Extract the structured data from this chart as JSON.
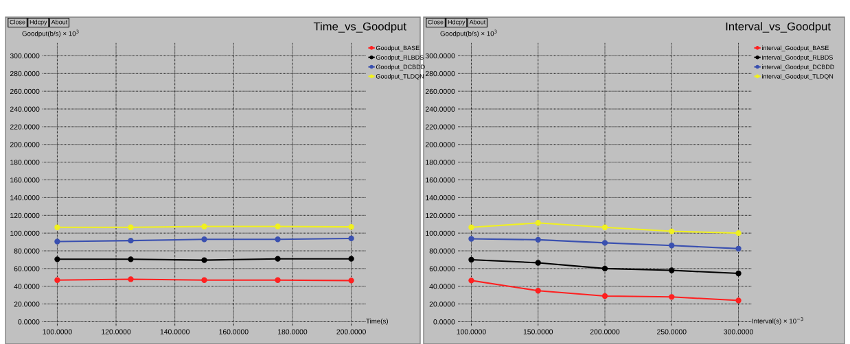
{
  "chart_data": [
    {
      "type": "line",
      "title": "Time_vs_Goodput",
      "ylabel": "Goodput(b/s) × 10$^{3}$",
      "xlabel": "Time(s)",
      "annotations": [
        "Close",
        "Hdcpy",
        "About"
      ],
      "x": [
        100,
        125,
        150,
        175,
        200
      ],
      "series": [
        {
          "name": "Goodput_BASE",
          "color": "#ff2020",
          "values": [
            47,
            48,
            47,
            47,
            46.5
          ]
        },
        {
          "name": "Goodput_RLBDS",
          "color": "#000000",
          "values": [
            70.5,
            70.5,
            69.5,
            71,
            71
          ]
        },
        {
          "name": "Goodput_DCBDD",
          "color": "#3a50b0",
          "values": [
            90.5,
            91.5,
            93,
            93,
            94
          ]
        },
        {
          "name": "Goodput_TLDQN",
          "color": "#f0f020",
          "values": [
            106.5,
            106.5,
            107.5,
            107.5,
            107
          ]
        }
      ],
      "xlim": [
        95,
        205
      ],
      "xticks": [
        {
          "value": 100,
          "label": "100.0000"
        },
        {
          "value": 120,
          "label": "120.0000"
        },
        {
          "value": 140,
          "label": "140.0000"
        },
        {
          "value": 160,
          "label": "160.0000"
        },
        {
          "value": 180,
          "label": "180.0000"
        },
        {
          "value": 200,
          "label": "200.0000"
        }
      ],
      "ylim": [
        -5,
        315
      ],
      "yticks": [
        {
          "value": 0,
          "label": "0.0000"
        },
        {
          "value": 20,
          "label": "20.0000"
        },
        {
          "value": 40,
          "label": "40.0000"
        },
        {
          "value": 60,
          "label": "60.0000"
        },
        {
          "value": 80,
          "label": "80.0000"
        },
        {
          "value": 100,
          "label": "100.0000"
        },
        {
          "value": 120,
          "label": "120.0000"
        },
        {
          "value": 140,
          "label": "140.0000"
        },
        {
          "value": 160,
          "label": "160.0000"
        },
        {
          "value": 180,
          "label": "180.0000"
        },
        {
          "value": 200,
          "label": "200.0000"
        },
        {
          "value": 220,
          "label": "220.0000"
        },
        {
          "value": 240,
          "label": "240.0000"
        },
        {
          "value": 260,
          "label": "260.0000"
        },
        {
          "value": 280,
          "label": "280.0000"
        },
        {
          "value": 300,
          "label": "300.0000"
        }
      ],
      "grid": true,
      "legend": "top right",
      "marker": "circle",
      "line_style": "solid"
    },
    {
      "type": "line",
      "title": "Interval_vs_Goodput",
      "ylabel": "Goodput(b/s) × 10$^{3}$",
      "xlabel": "Interval(s) × 10$^{−3}$",
      "annotations": [
        "Close",
        "Hdcpy",
        "About"
      ],
      "x": [
        100,
        150,
        200,
        250,
        300
      ],
      "series": [
        {
          "name": "interval_Goodput_BASE",
          "color": "#ff2020",
          "values": [
            46.5,
            35,
            29,
            28,
            24
          ]
        },
        {
          "name": "interval_Goodput_RLBDS",
          "color": "#000000",
          "values": [
            70,
            66.5,
            60,
            58,
            54.5
          ]
        },
        {
          "name": "interval_Goodput_DCBDD",
          "color": "#3a50b0",
          "values": [
            93.5,
            92.5,
            89,
            86,
            82.5
          ]
        },
        {
          "name": "interval_Goodput_TLDQN",
          "color": "#f0f020",
          "values": [
            106.5,
            111.5,
            106.5,
            102,
            100
          ]
        }
      ],
      "xlim": [
        90,
        310
      ],
      "xticks": [
        {
          "value": 100,
          "label": "100.0000"
        },
        {
          "value": 150,
          "label": "150.0000"
        },
        {
          "value": 200,
          "label": "200.0000"
        },
        {
          "value": 250,
          "label": "250.0000"
        },
        {
          "value": 300,
          "label": "300.0000"
        }
      ],
      "ylim": [
        -5,
        315
      ],
      "yticks": [
        {
          "value": 0,
          "label": "0.0000"
        },
        {
          "value": 20,
          "label": "20.0000"
        },
        {
          "value": 40,
          "label": "40.0000"
        },
        {
          "value": 60,
          "label": "60.0000"
        },
        {
          "value": 80,
          "label": "80.0000"
        },
        {
          "value": 100,
          "label": "100.0000"
        },
        {
          "value": 120,
          "label": "120.0000"
        },
        {
          "value": 140,
          "label": "140.0000"
        },
        {
          "value": 160,
          "label": "160.0000"
        },
        {
          "value": 180,
          "label": "180.0000"
        },
        {
          "value": 200,
          "label": "200.0000"
        },
        {
          "value": 220,
          "label": "220.0000"
        },
        {
          "value": 240,
          "label": "240.0000"
        },
        {
          "value": 260,
          "label": "260.0000"
        },
        {
          "value": 280,
          "label": "280.0000"
        },
        {
          "value": 300,
          "label": "300.0000"
        }
      ],
      "grid": true,
      "legend": "top right",
      "marker": "circle",
      "line_style": "solid"
    }
  ]
}
